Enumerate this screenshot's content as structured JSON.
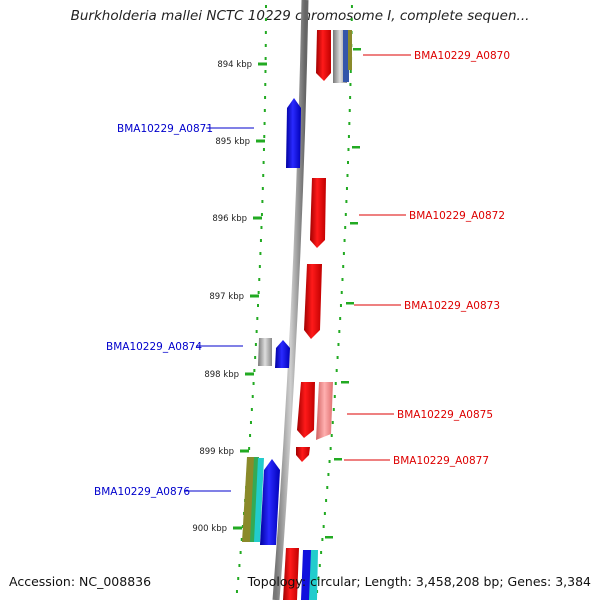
{
  "title": "Burkholderia mallei NCTC 10229 chromosome I, complete sequen...",
  "accession_text": "Accession: NC_008836",
  "summary_text": "Topology: circular; Length: 3,458,208 bp; Genes: 3,384",
  "scale_unit": "kbp",
  "ticks": [
    {
      "kbp": 894,
      "label": "894 kbp"
    },
    {
      "kbp": 895,
      "label": "895 kbp"
    },
    {
      "kbp": 896,
      "label": "896 kbp"
    },
    {
      "kbp": 897,
      "label": "897 kbp"
    },
    {
      "kbp": 898,
      "label": "898 kbp"
    },
    {
      "kbp": 899,
      "label": "899 kbp"
    },
    {
      "kbp": 900,
      "label": "900 kbp"
    }
  ],
  "genes": [
    {
      "label": "BMA10229_A0870",
      "strand": "forward",
      "color": "#ee0000"
    },
    {
      "label": "BMA10229_A0871",
      "strand": "reverse",
      "color": "#1111dd"
    },
    {
      "label": "BMA10229_A0872",
      "strand": "forward",
      "color": "#ee0000"
    },
    {
      "label": "BMA10229_A0873",
      "strand": "forward",
      "color": "#ee0000"
    },
    {
      "label": "BMA10229_A0874",
      "strand": "reverse",
      "color": "#1111dd"
    },
    {
      "label": "BMA10229_A0875",
      "strand": "forward",
      "color": "#ee0000"
    },
    {
      "label": "BMA10229_A0877",
      "strand": "forward",
      "color": "#ee0000"
    },
    {
      "label": "BMA10229_A0876",
      "strand": "reverse",
      "color": "#1111dd"
    }
  ],
  "colors": {
    "forward_label": "#dd0000",
    "reverse_label": "#0000cc",
    "backbone": "#888888",
    "dotted_track": "#22aa22",
    "gray_feature": "#9a9a9a",
    "pink_feature": "#f08a8a",
    "olive_feature": "#8a8a2a",
    "cyan_feature": "#22cccc"
  }
}
